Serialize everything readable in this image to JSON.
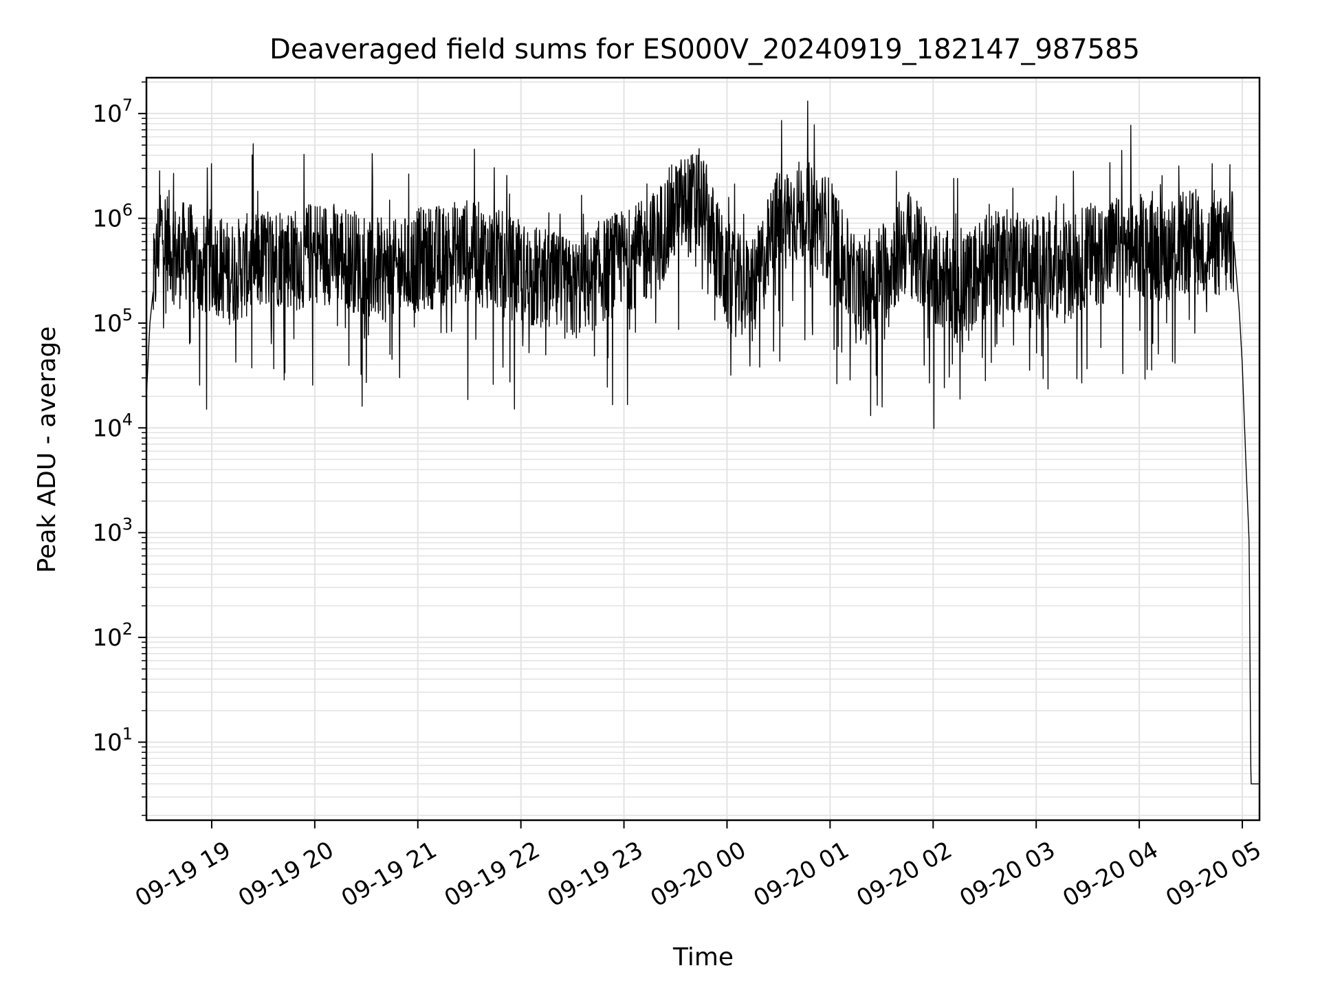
{
  "chart_data": {
    "type": "line",
    "title": "Deaveraged field sums for ES000V_20240919_182147_987585",
    "xlabel": "Time",
    "ylabel": "Peak ADU - average",
    "yscale": "log",
    "ylim": [
      1.8,
      22000000
    ],
    "xlim": [
      "2024-09-19 18:22",
      "2024-09-20 05:10"
    ],
    "grid": true,
    "line_color": "#000000",
    "grid_color": "#e3e3e3",
    "x_ticks": [
      {
        "t": "2024-09-19 19:00",
        "label": "09-19 19"
      },
      {
        "t": "2024-09-19 20:00",
        "label": "09-19 20"
      },
      {
        "t": "2024-09-19 21:00",
        "label": "09-19 21"
      },
      {
        "t": "2024-09-19 22:00",
        "label": "09-19 22"
      },
      {
        "t": "2024-09-19 23:00",
        "label": "09-19 23"
      },
      {
        "t": "2024-09-20 00:00",
        "label": "09-20 00"
      },
      {
        "t": "2024-09-20 01:00",
        "label": "09-20 01"
      },
      {
        "t": "2024-09-20 02:00",
        "label": "09-20 02"
      },
      {
        "t": "2024-09-20 03:00",
        "label": "09-20 03"
      },
      {
        "t": "2024-09-20 04:00",
        "label": "09-20 04"
      },
      {
        "t": "2024-09-20 05:00",
        "label": "09-20 05"
      }
    ],
    "y_ticks": [
      {
        "value": 10,
        "base": "10",
        "exp": "1"
      },
      {
        "value": 100,
        "base": "10",
        "exp": "2"
      },
      {
        "value": 1000,
        "base": "10",
        "exp": "3"
      },
      {
        "value": 10000,
        "base": "10",
        "exp": "4"
      },
      {
        "value": 100000,
        "base": "10",
        "exp": "5"
      },
      {
        "value": 1000000,
        "base": "10",
        "exp": "6"
      },
      {
        "value": 10000000,
        "base": "10",
        "exp": "7"
      }
    ],
    "series": [
      {
        "x": [
          "2024-09-19 18:22",
          "2024-09-19 18:24",
          "2024-09-19 18:27",
          "2024-09-19 18:30",
          "2024-09-19 18:35",
          "2024-09-19 18:40",
          "2024-09-19 18:45",
          "2024-09-19 18:50",
          "2024-09-19 18:55",
          "2024-09-19 19:00",
          "2024-09-19 19:10",
          "2024-09-19 19:20",
          "2024-09-19 19:30",
          "2024-09-19 19:40",
          "2024-09-19 19:50",
          "2024-09-19 20:00",
          "2024-09-19 20:15",
          "2024-09-19 20:30",
          "2024-09-19 20:45",
          "2024-09-19 21:00",
          "2024-09-19 21:15",
          "2024-09-19 21:30",
          "2024-09-19 21:45",
          "2024-09-19 22:00",
          "2024-09-19 22:15",
          "2024-09-19 22:30",
          "2024-09-19 22:45",
          "2024-09-19 23:00",
          "2024-09-19 23:15",
          "2024-09-19 23:30",
          "2024-09-19 23:45",
          "2024-09-20 00:00",
          "2024-09-20 00:15",
          "2024-09-20 00:30",
          "2024-09-20 00:45",
          "2024-09-20 01:00",
          "2024-09-20 01:15",
          "2024-09-20 01:30",
          "2024-09-20 01:45",
          "2024-09-20 02:00",
          "2024-09-20 02:15",
          "2024-09-20 02:30",
          "2024-09-20 02:45",
          "2024-09-20 03:00",
          "2024-09-20 03:15",
          "2024-09-20 03:30",
          "2024-09-20 03:45",
          "2024-09-20 04:00",
          "2024-09-20 04:15",
          "2024-09-20 04:30",
          "2024-09-20 04:45",
          "2024-09-20 04:55",
          "2024-09-20 04:58",
          "2024-09-20 05:00",
          "2024-09-20 05:02",
          "2024-09-20 05:04",
          "2024-09-20 05:05",
          "2024-09-20 05:06",
          "2024-09-20 05:08",
          "2024-09-20 05:10"
        ],
        "y": [
          20000,
          100000,
          300000,
          800000,
          600000,
          400000,
          500000,
          400000,
          350000,
          400000,
          300000,
          350000,
          400000,
          450000,
          400000,
          500000,
          450000,
          350000,
          300000,
          400000,
          450000,
          500000,
          400000,
          300000,
          250000,
          200000,
          300000,
          400000,
          500000,
          1200000,
          1500000,
          250000,
          200000,
          1000000,
          1200000,
          800000,
          200000,
          300000,
          600000,
          300000,
          200000,
          350000,
          400000,
          350000,
          300000,
          450000,
          500000,
          550000,
          500000,
          600000,
          500000,
          600000,
          150000,
          40000,
          5000,
          800,
          4,
          4,
          4,
          4
        ]
      }
    ]
  }
}
